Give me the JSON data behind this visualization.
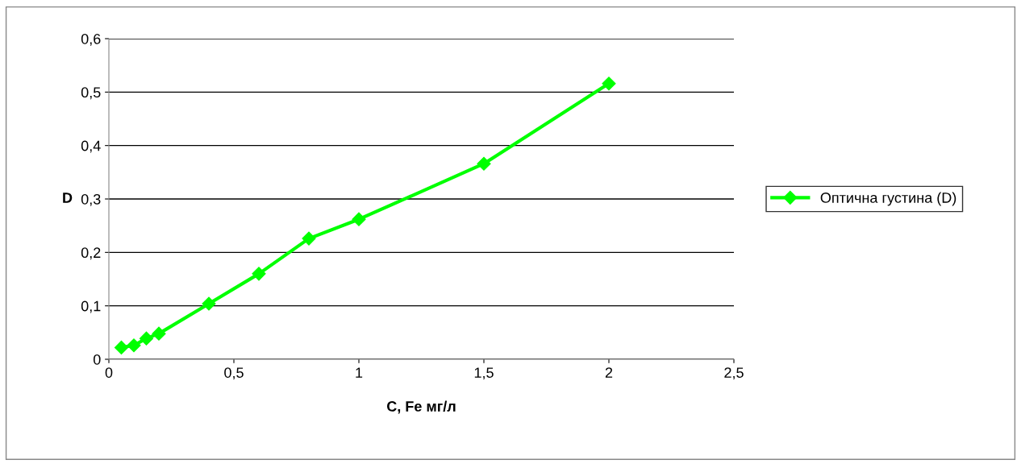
{
  "chart_data": {
    "type": "line",
    "xlabel": "C, Fe мг/л",
    "ylabel": "D",
    "x": [
      0.05,
      0.1,
      0.15,
      0.2,
      0.4,
      0.6,
      0.8,
      1,
      1.5,
      2
    ],
    "series": [
      {
        "name": "Оптична густина (D)",
        "color": "#00ff00",
        "values": [
          0.022,
          0.026,
          0.039,
          0.048,
          0.104,
          0.16,
          0.226,
          0.262,
          0.366,
          0.516
        ]
      }
    ],
    "xlim": [
      0,
      2.5
    ],
    "xticks": [
      {
        "value": 0,
        "label": "0"
      },
      {
        "value": 0.5,
        "label": "0,5"
      },
      {
        "value": 1,
        "label": "1"
      },
      {
        "value": 1.5,
        "label": "1,5"
      },
      {
        "value": 2,
        "label": "2"
      },
      {
        "value": 2.5,
        "label": "2,5"
      }
    ],
    "ylim": [
      0,
      0.6
    ],
    "yticks": [
      {
        "value": 0,
        "label": "0"
      },
      {
        "value": 0.1,
        "label": "0,1"
      },
      {
        "value": 0.2,
        "label": "0,2"
      },
      {
        "value": 0.3,
        "label": "0,3"
      },
      {
        "value": 0.4,
        "label": "0,4"
      },
      {
        "value": 0.5,
        "label": "0,5"
      },
      {
        "value": 0.6,
        "label": "0,6"
      }
    ],
    "grid": "y",
    "legend": "right",
    "marker": "diamond",
    "line_style": "solid"
  }
}
